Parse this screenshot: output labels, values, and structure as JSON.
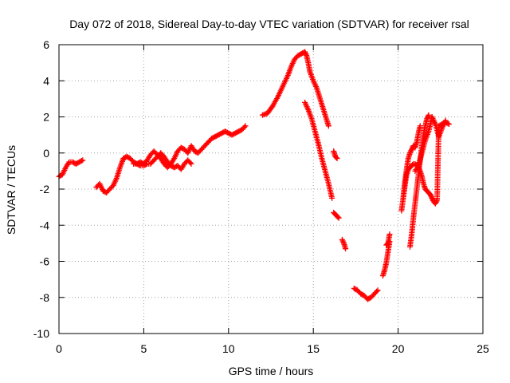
{
  "chart_data": {
    "type": "scatter",
    "title": "Day 072 of 2018, Sidereal Day-to-day VTEC variation (SDTVAR) for receiver rsal",
    "xlabel": "GPS time / hours",
    "ylabel": "SDTVAR / TECUs",
    "xlim": [
      0,
      25
    ],
    "ylim": [
      -10,
      6
    ],
    "xticks": [
      0,
      5,
      10,
      15,
      20,
      25
    ],
    "yticks": [
      -10,
      -8,
      -6,
      -4,
      -2,
      0,
      2,
      4,
      6
    ],
    "grid": true,
    "marker": "+",
    "color": "#ff0000",
    "segments": [
      {
        "x": [
          0.0,
          0.2,
          0.4,
          0.6,
          0.8,
          1.0,
          1.2,
          1.4
        ],
        "y": [
          -1.3,
          -1.2,
          -0.8,
          -0.5,
          -0.5,
          -0.6,
          -0.5,
          -0.4
        ]
      },
      {
        "x": [
          2.2,
          2.4,
          2.6,
          2.8,
          3.0,
          3.2,
          3.4,
          3.6,
          3.8,
          4.0,
          4.2,
          4.4,
          4.6,
          4.8,
          5.0,
          5.2,
          5.4,
          5.6,
          5.8,
          6.0,
          6.2,
          6.4,
          6.6,
          6.8,
          7.0,
          7.2,
          7.4,
          7.6,
          7.8,
          8.0,
          8.2,
          8.4,
          8.6,
          8.8,
          9.0,
          9.2,
          9.4,
          9.6,
          9.8,
          10.0,
          10.2,
          10.4,
          10.6,
          10.8,
          11.0
        ],
        "y": [
          -1.9,
          -1.7,
          -2.1,
          -2.2,
          -2.0,
          -1.8,
          -1.4,
          -0.8,
          -0.3,
          -0.2,
          -0.3,
          -0.5,
          -0.6,
          -0.5,
          -0.6,
          -0.4,
          -0.1,
          0.1,
          -0.1,
          -0.3,
          -0.6,
          -0.8,
          -0.6,
          -0.3,
          0.1,
          0.3,
          0.2,
          0.0,
          0.4,
          0.1,
          0.0,
          0.2,
          0.4,
          0.6,
          0.8,
          0.9,
          1.0,
          1.1,
          1.2,
          1.1,
          1.0,
          1.1,
          1.2,
          1.3,
          1.5
        ]
      },
      {
        "x": [
          4.4,
          4.6,
          4.8,
          5.0,
          5.2,
          5.4,
          5.6,
          5.8,
          6.0,
          6.2,
          6.4,
          6.6,
          6.8,
          7.0,
          7.2,
          7.4,
          7.6,
          7.8
        ],
        "y": [
          -0.6,
          -0.6,
          -0.7,
          -0.7,
          -0.6,
          -0.6,
          -0.4,
          -0.2,
          0.0,
          -0.2,
          -0.5,
          -0.7,
          -0.8,
          -0.7,
          -0.9,
          -0.6,
          -0.4,
          -0.6
        ]
      },
      {
        "x": [
          12.0,
          12.3,
          12.6,
          12.9,
          13.2,
          13.5,
          13.7,
          13.9,
          14.1,
          14.3,
          14.5,
          14.6,
          14.7,
          14.8,
          15.0,
          15.2,
          15.4,
          15.6,
          15.8,
          15.9
        ],
        "y": [
          2.1,
          2.2,
          2.6,
          3.1,
          3.7,
          4.3,
          4.8,
          5.2,
          5.4,
          5.5,
          5.6,
          5.4,
          5.0,
          4.5,
          4.0,
          3.6,
          3.0,
          2.4,
          1.8,
          1.5
        ]
      },
      {
        "x": [
          14.5,
          14.7,
          14.9,
          15.1,
          15.3,
          15.5,
          15.7,
          15.9,
          16.1
        ],
        "y": [
          2.8,
          2.4,
          1.9,
          1.2,
          0.5,
          -0.3,
          -1.0,
          -1.7,
          -2.5
        ]
      },
      {
        "x": [
          16.2,
          16.3,
          16.4
        ],
        "y": [
          0.1,
          -0.2,
          -0.3
        ]
      },
      {
        "x": [
          16.2,
          16.3,
          16.4,
          16.5
        ],
        "y": [
          -3.3,
          -3.4,
          -3.5,
          -3.6
        ]
      },
      {
        "x": [
          16.7,
          16.8,
          16.9
        ],
        "y": [
          -4.8,
          -5.0,
          -5.3
        ]
      },
      {
        "x": [
          17.4,
          17.6,
          17.8,
          18.0,
          18.2,
          18.4,
          18.6,
          18.8
        ],
        "y": [
          -7.5,
          -7.6,
          -7.8,
          -7.9,
          -8.1,
          -8.0,
          -7.8,
          -7.6
        ]
      },
      {
        "x": [
          19.1,
          19.2,
          19.3,
          19.4,
          19.5
        ],
        "y": [
          -6.8,
          -6.5,
          -6.1,
          -5.5,
          -4.9
        ]
      },
      {
        "x": [
          19.3,
          19.4,
          19.5
        ],
        "y": [
          -5.1,
          -5.0,
          -4.5
        ]
      },
      {
        "x": [
          20.2,
          20.3,
          20.4,
          20.5,
          20.6,
          20.7,
          20.8,
          20.9,
          21.0,
          21.1,
          21.2,
          21.3,
          21.4,
          21.5,
          21.6,
          21.7,
          21.8,
          21.9,
          22.0,
          22.1,
          22.2,
          22.3,
          22.4,
          22.6,
          22.8,
          23.0
        ],
        "y": [
          -3.2,
          -2.5,
          -1.8,
          -1.2,
          -0.9,
          -0.8,
          -0.7,
          -0.6,
          -0.6,
          -0.7,
          -0.8,
          -1.0,
          -1.3,
          -1.7,
          -2.0,
          -2.1,
          -2.2,
          -2.3,
          -2.5,
          -2.7,
          -2.8,
          -2.6,
          1.5,
          1.6,
          1.7,
          1.6
        ]
      },
      {
        "x": [
          20.3,
          20.4,
          20.5,
          20.6,
          20.7,
          20.8,
          20.9,
          21.0,
          21.1,
          21.2,
          21.3
        ],
        "y": [
          -2.5,
          -1.6,
          -0.9,
          -0.3,
          0.0,
          0.2,
          0.4,
          0.3,
          0.6,
          1.1,
          1.5
        ]
      },
      {
        "x": [
          20.7,
          20.8,
          20.9,
          21.0,
          21.1,
          21.2,
          21.3,
          21.4,
          21.5,
          21.6,
          21.7,
          21.8
        ],
        "y": [
          -5.2,
          -4.5,
          -3.6,
          -2.8,
          -2.0,
          -1.2,
          -0.4,
          0.4,
          1.0,
          1.5,
          1.9,
          2.1
        ]
      },
      {
        "x": [
          21.0,
          21.2,
          21.4,
          21.6,
          21.8,
          22.0,
          22.2,
          22.4,
          22.6,
          22.8
        ],
        "y": [
          -1.0,
          -0.7,
          0.0,
          0.7,
          1.2,
          2.0,
          1.6,
          0.9,
          1.4,
          1.8
        ]
      }
    ]
  }
}
